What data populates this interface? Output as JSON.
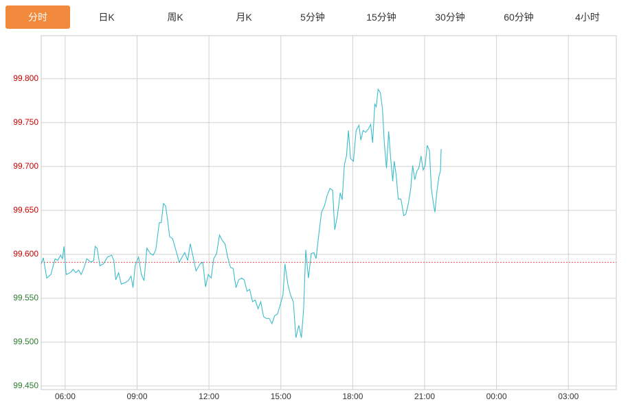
{
  "tabs": [
    "分时",
    "日K",
    "周K",
    "月K",
    "5分钟",
    "15分钟",
    "30分钟",
    "60分钟",
    "4小时"
  ],
  "active_tab": 0,
  "chart_data": {
    "type": "line",
    "x": [
      5.0,
      5.09,
      5.23,
      5.4,
      5.58,
      5.69,
      5.81,
      5.89,
      5.95,
      6.04,
      6.21,
      6.33,
      6.44,
      6.56,
      6.67,
      6.79,
      6.9,
      7.07,
      7.19,
      7.25,
      7.33,
      7.45,
      7.59,
      7.77,
      7.94,
      8.03,
      8.11,
      8.23,
      8.34,
      8.52,
      8.63,
      8.75,
      8.83,
      8.92,
      9.06,
      9.18,
      9.29,
      9.41,
      9.55,
      9.67,
      9.78,
      9.93,
      10.01,
      10.1,
      10.19,
      10.27,
      10.36,
      10.48,
      10.65,
      10.76,
      10.88,
      10.99,
      11.11,
      11.22,
      11.34,
      11.46,
      11.63,
      11.74,
      11.86,
      11.97,
      12.09,
      12.2,
      12.32,
      12.44,
      12.55,
      12.67,
      12.78,
      12.9,
      13.01,
      13.13,
      13.24,
      13.36,
      13.47,
      13.59,
      13.7,
      13.82,
      13.93,
      14.05,
      14.16,
      14.28,
      14.39,
      14.51,
      14.63,
      14.74,
      14.86,
      14.97,
      15.09,
      15.17,
      15.29,
      15.4,
      15.52,
      15.63,
      15.75,
      15.86,
      15.95,
      16.04,
      16.15,
      16.27,
      16.38,
      16.47,
      16.59,
      16.7,
      16.82,
      16.93,
      17.05,
      17.16,
      17.25,
      17.36,
      17.48,
      17.56,
      17.65,
      17.74,
      17.82,
      17.91,
      18.03,
      18.14,
      18.26,
      18.34,
      18.43,
      18.54,
      18.66,
      18.75,
      18.83,
      18.92,
      18.98,
      19.06,
      19.15,
      19.24,
      19.32,
      19.41,
      19.5,
      19.58,
      19.67,
      19.73,
      19.81,
      19.9,
      20.01,
      20.13,
      20.22,
      20.33,
      20.42,
      20.5,
      20.59,
      20.68,
      20.76,
      20.85,
      20.94,
      21.02,
      21.11,
      21.2,
      21.28,
      21.37,
      21.43,
      21.51,
      21.6,
      21.66,
      21.69
    ],
    "series": [
      {
        "color": "#3bbccb",
        "values": [
          99.589,
          99.596,
          99.573,
          99.577,
          99.595,
          99.593,
          99.599,
          99.595,
          99.609,
          99.577,
          99.579,
          99.583,
          99.579,
          99.582,
          99.577,
          99.585,
          99.595,
          99.591,
          99.593,
          99.609,
          99.607,
          99.587,
          99.589,
          99.597,
          99.599,
          99.593,
          99.571,
          99.579,
          99.566,
          99.568,
          99.57,
          99.575,
          99.562,
          99.587,
          99.597,
          99.577,
          99.57,
          99.607,
          99.601,
          99.599,
          99.605,
          99.636,
          99.636,
          99.658,
          99.655,
          99.64,
          99.62,
          99.618,
          99.602,
          99.591,
          99.597,
          99.602,
          99.593,
          99.612,
          99.597,
          99.581,
          99.589,
          99.591,
          99.563,
          99.577,
          99.573,
          99.595,
          99.601,
          99.622,
          99.616,
          99.612,
          99.597,
          99.585,
          99.584,
          99.562,
          99.571,
          99.573,
          99.571,
          99.558,
          99.56,
          99.546,
          99.548,
          99.538,
          99.546,
          99.529,
          99.527,
          99.527,
          99.521,
          99.53,
          99.532,
          99.542,
          99.554,
          99.589,
          99.566,
          99.554,
          99.546,
          99.505,
          99.519,
          99.505,
          99.538,
          99.605,
          99.573,
          99.601,
          99.602,
          99.595,
          99.624,
          99.648,
          99.655,
          99.667,
          99.675,
          99.673,
          99.628,
          99.644,
          99.67,
          99.662,
          99.702,
          99.712,
          99.741,
          99.709,
          99.706,
          99.741,
          99.747,
          99.73,
          99.741,
          99.739,
          99.743,
          99.748,
          99.727,
          99.771,
          99.768,
          99.788,
          99.784,
          99.766,
          99.726,
          99.698,
          99.74,
          99.71,
          99.683,
          99.706,
          99.691,
          99.663,
          99.663,
          99.644,
          99.646,
          99.659,
          99.675,
          99.701,
          99.685,
          99.695,
          99.698,
          99.712,
          99.696,
          99.701,
          99.724,
          99.718,
          99.675,
          99.657,
          99.648,
          99.671,
          99.689,
          99.695,
          99.72
        ]
      }
    ],
    "xlim": [
      5,
      29
    ],
    "xticks": [
      {
        "value": 6,
        "label": "06:00"
      },
      {
        "value": 9,
        "label": "09:00"
      },
      {
        "value": 12,
        "label": "12:00"
      },
      {
        "value": 15,
        "label": "15:00"
      },
      {
        "value": 18,
        "label": "18:00"
      },
      {
        "value": 21,
        "label": "21:00"
      },
      {
        "value": 24,
        "label": "00:00"
      },
      {
        "value": 27,
        "label": "03:00"
      }
    ],
    "ylim": [
      99.446,
      99.849
    ],
    "yticks": [
      {
        "value": 99.45,
        "label": "99.450"
      },
      {
        "value": 99.5,
        "label": "99.500"
      },
      {
        "value": 99.55,
        "label": "99.550"
      },
      {
        "value": 99.6,
        "label": "99.600"
      },
      {
        "value": 99.65,
        "label": "99.650"
      },
      {
        "value": 99.7,
        "label": "99.700"
      },
      {
        "value": 99.75,
        "label": "99.750"
      },
      {
        "value": 99.8,
        "label": "99.800"
      }
    ],
    "reference_line": 99.591,
    "reference_color": "#e0483c",
    "up_color": "#cc0000",
    "down_color": "#2e7d32",
    "grid": true
  }
}
